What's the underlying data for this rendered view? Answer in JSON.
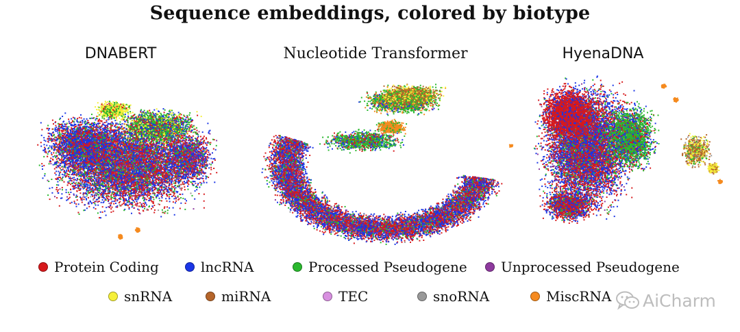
{
  "title": "Sequence embeddings, colored by biotype",
  "watermark": {
    "text": "AiCharm",
    "icon": "wechat-icon"
  },
  "legend": [
    {
      "label": "Protein Coding",
      "color": "#d7191c"
    },
    {
      "label": "lncRNA",
      "color": "#1a35e6"
    },
    {
      "label": "Processed Pseudogene",
      "color": "#2ab82e"
    },
    {
      "label": "Unprocessed Pseudogene",
      "color": "#8e3a9e"
    },
    {
      "label": "snRNA",
      "color": "#f6f03a"
    },
    {
      "label": "miRNA",
      "color": "#b5652a"
    },
    {
      "label": "TEC",
      "color": "#d890e0"
    },
    {
      "label": "snoRNA",
      "color": "#999999"
    },
    {
      "label": "MiscRNA",
      "color": "#f58a1f"
    }
  ],
  "chart_data": [
    {
      "type": "scatter",
      "title": "DNABERT",
      "xlabel": "",
      "ylabel": "",
      "axes": "hidden",
      "grid": false,
      "series": [
        "Protein Coding",
        "lncRNA",
        "Processed Pseudogene",
        "Unprocessed Pseudogene",
        "snRNA",
        "miRNA",
        "TEC",
        "snoRNA",
        "MiscRNA"
      ]
    },
    {
      "type": "scatter",
      "title": "Nucleotide Transformer",
      "xlabel": "",
      "ylabel": "",
      "axes": "hidden",
      "grid": false,
      "series": [
        "Protein Coding",
        "lncRNA",
        "Processed Pseudogene",
        "Unprocessed Pseudogene",
        "snRNA",
        "miRNA",
        "TEC",
        "snoRNA",
        "MiscRNA"
      ]
    },
    {
      "type": "scatter",
      "title": "HyenaDNA",
      "xlabel": "",
      "ylabel": "",
      "axes": "hidden",
      "grid": false,
      "series": [
        "Protein Coding",
        "lncRNA",
        "Processed Pseudogene",
        "Unprocessed Pseudogene",
        "snRNA",
        "miRNA",
        "TEC",
        "snoRNA",
        "MiscRNA"
      ]
    }
  ]
}
